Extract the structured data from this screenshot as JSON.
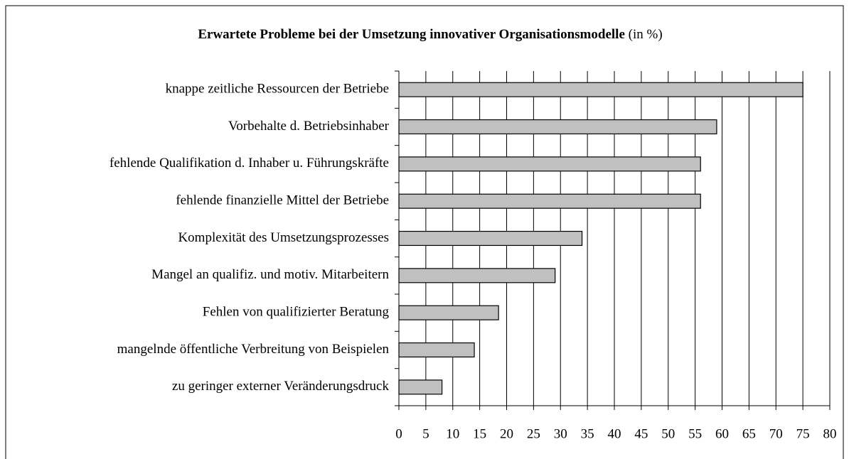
{
  "chart_data": {
    "type": "bar",
    "orientation": "horizontal",
    "title": "Erwartete Probleme bei der Umsetzung innovativer Organisationsmodelle",
    "title_unit": "(in %)",
    "categories": [
      "knappe zeitliche Ressourcen der Betriebe",
      "Vorbehalte d. Betriebsinhaber",
      "fehlende Qualifikation d. Inhaber u. Führungskräfte",
      "fehlende finanzielle Mittel der Betriebe",
      "Komplexität des Umsetzungsprozesses",
      "Mangel an qualifiz. und motiv. Mitarbeitern",
      "Fehlen von qualifizierter Beratung",
      "mangelnde öffentliche Verbreitung von Beispielen",
      "zu geringer externer Veränderungsdruck"
    ],
    "values": [
      75,
      59,
      56,
      56,
      34,
      29,
      18.5,
      14,
      8
    ],
    "color": "#c0c0c0",
    "xlim": [
      0,
      80
    ],
    "xticks": [
      0,
      5,
      10,
      15,
      20,
      25,
      30,
      35,
      40,
      45,
      50,
      55,
      60,
      65,
      70,
      75,
      80
    ],
    "grid": true
  }
}
